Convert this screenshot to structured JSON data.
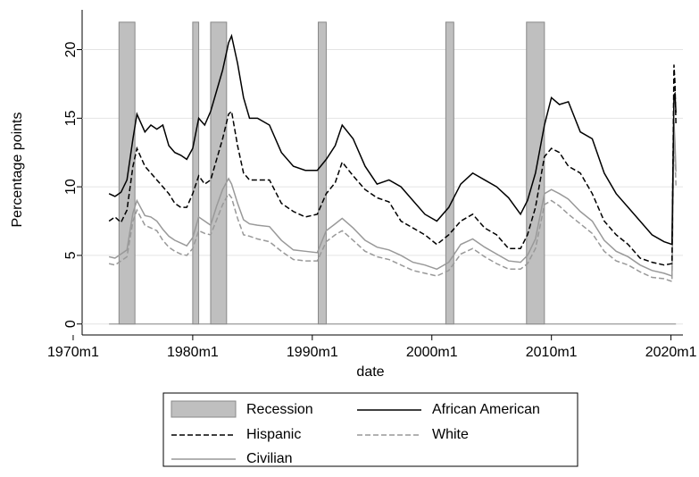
{
  "chart_data": {
    "type": "line",
    "x_label": "date",
    "y_label": "Percentage points",
    "xlim": [
      "1970m10",
      "2021m1"
    ],
    "ylim": [
      -0.8,
      22.9
    ],
    "xticks": [
      "1970m1",
      "1980m1",
      "1990m1",
      "2000m1",
      "2010m1",
      "2020m1"
    ],
    "yticks": [
      0,
      5,
      10,
      15,
      20
    ],
    "recession": {
      "name": "Recession",
      "color": "#bfbfbf",
      "value": 22,
      "periods": [
        [
          "1973m11",
          "1975m3"
        ],
        [
          "1980m1",
          "1980m7"
        ],
        [
          "1981m7",
          "1982m11"
        ],
        [
          "1990m7",
          "1991m3"
        ],
        [
          "2001m3",
          "2001m11"
        ],
        [
          "2007m12",
          "2009m6"
        ]
      ]
    },
    "x": [
      "1973m1",
      "1973m7",
      "1974m1",
      "1974m7",
      "1975m1",
      "1975m5",
      "1976m1",
      "1976m7",
      "1977m1",
      "1977m7",
      "1978m1",
      "1978m7",
      "1979m1",
      "1979m7",
      "1980m1",
      "1980m7",
      "1981m1",
      "1981m7",
      "1982m1",
      "1982m7",
      "1983m1",
      "1983m4",
      "1983m10",
      "1984m4",
      "1984m10",
      "1985m6",
      "1986m6",
      "1987m6",
      "1988m6",
      "1989m6",
      "1990m6",
      "1991m3",
      "1991m12",
      "1992m7",
      "1993m6",
      "1994m6",
      "1995m6",
      "1996m6",
      "1997m6",
      "1998m6",
      "1999m6",
      "2000m6",
      "2001m6",
      "2002m6",
      "2003m6",
      "2004m6",
      "2005m6",
      "2006m6",
      "2007m6",
      "2008m1",
      "2008m9",
      "2009m6",
      "2010m1",
      "2010m9",
      "2011m6",
      "2012m6",
      "2013m6",
      "2014m6",
      "2015m6",
      "2016m6",
      "2017m6",
      "2018m6",
      "2019m6",
      "2020m2",
      "2020m4",
      "2020m5",
      "2020m6"
    ],
    "series": [
      {
        "name": "African American",
        "color": "#000000",
        "dash": false,
        "values": [
          9.5,
          9.3,
          9.6,
          10.5,
          13.5,
          15.3,
          14.0,
          14.5,
          14.2,
          14.5,
          13.0,
          12.5,
          12.3,
          12.0,
          12.8,
          15.0,
          14.5,
          15.5,
          17.0,
          18.5,
          20.5,
          21.0,
          19.0,
          16.5,
          15.0,
          15.0,
          14.5,
          12.5,
          11.5,
          11.2,
          11.2,
          12.0,
          13.0,
          14.5,
          13.5,
          11.5,
          10.2,
          10.5,
          10.0,
          9.0,
          8.0,
          7.5,
          8.5,
          10.2,
          11.0,
          10.5,
          10.0,
          9.2,
          8.0,
          9.0,
          11.0,
          14.5,
          16.5,
          16.0,
          16.2,
          14.0,
          13.5,
          11.0,
          9.5,
          8.5,
          7.5,
          6.5,
          6.0,
          5.8,
          16.7,
          16.8,
          15.4
        ]
      },
      {
        "name": "Hispanic",
        "color": "#000000",
        "dash": true,
        "values": [
          7.5,
          7.8,
          7.4,
          8.3,
          11.5,
          12.8,
          11.5,
          11.0,
          10.5,
          10.0,
          9.5,
          8.8,
          8.5,
          8.5,
          9.5,
          10.8,
          10.2,
          10.5,
          12.0,
          13.5,
          15.3,
          15.5,
          13.0,
          11.0,
          10.5,
          10.5,
          10.5,
          8.8,
          8.2,
          7.8,
          8.0,
          9.5,
          10.3,
          11.8,
          10.8,
          9.8,
          9.2,
          8.9,
          7.5,
          7.0,
          6.5,
          5.8,
          6.5,
          7.5,
          8.0,
          7.0,
          6.5,
          5.5,
          5.5,
          6.5,
          8.5,
          12.2,
          12.8,
          12.5,
          11.5,
          11.0,
          9.5,
          7.5,
          6.5,
          5.8,
          4.8,
          4.5,
          4.3,
          4.4,
          18.9,
          17.6,
          14.5
        ]
      },
      {
        "name": "White",
        "color": "#999999",
        "dash": true,
        "values": [
          4.4,
          4.3,
          4.6,
          4.9,
          7.5,
          8.3,
          7.2,
          7.0,
          6.8,
          6.1,
          5.6,
          5.3,
          5.1,
          5.0,
          5.5,
          6.8,
          6.6,
          6.5,
          7.6,
          8.7,
          9.5,
          9.2,
          7.7,
          6.5,
          6.4,
          6.2,
          6.0,
          5.3,
          4.7,
          4.6,
          4.6,
          6.0,
          6.5,
          6.8,
          6.1,
          5.3,
          4.9,
          4.7,
          4.3,
          3.9,
          3.7,
          3.5,
          3.9,
          5.1,
          5.5,
          4.9,
          4.4,
          4.0,
          4.0,
          4.4,
          5.5,
          8.7,
          9.0,
          8.6,
          8.0,
          7.3,
          6.6,
          5.3,
          4.6,
          4.3,
          3.8,
          3.4,
          3.3,
          3.1,
          14.2,
          12.4,
          10.1
        ]
      },
      {
        "name": "Civilian",
        "color": "#999999",
        "dash": false,
        "values": [
          4.9,
          4.8,
          5.1,
          5.4,
          8.1,
          9.0,
          7.9,
          7.8,
          7.5,
          6.9,
          6.4,
          6.1,
          5.9,
          5.7,
          6.3,
          7.8,
          7.5,
          7.2,
          8.6,
          9.8,
          10.6,
          10.2,
          8.8,
          7.6,
          7.3,
          7.2,
          7.1,
          6.1,
          5.4,
          5.3,
          5.2,
          6.8,
          7.3,
          7.7,
          7.0,
          6.1,
          5.6,
          5.4,
          5.0,
          4.5,
          4.3,
          4.0,
          4.5,
          5.8,
          6.2,
          5.6,
          5.1,
          4.6,
          4.5,
          5.0,
          6.2,
          9.5,
          9.8,
          9.5,
          9.1,
          8.2,
          7.5,
          6.1,
          5.3,
          4.9,
          4.3,
          3.9,
          3.7,
          3.5,
          14.7,
          13.3,
          11.1
        ]
      }
    ]
  }
}
